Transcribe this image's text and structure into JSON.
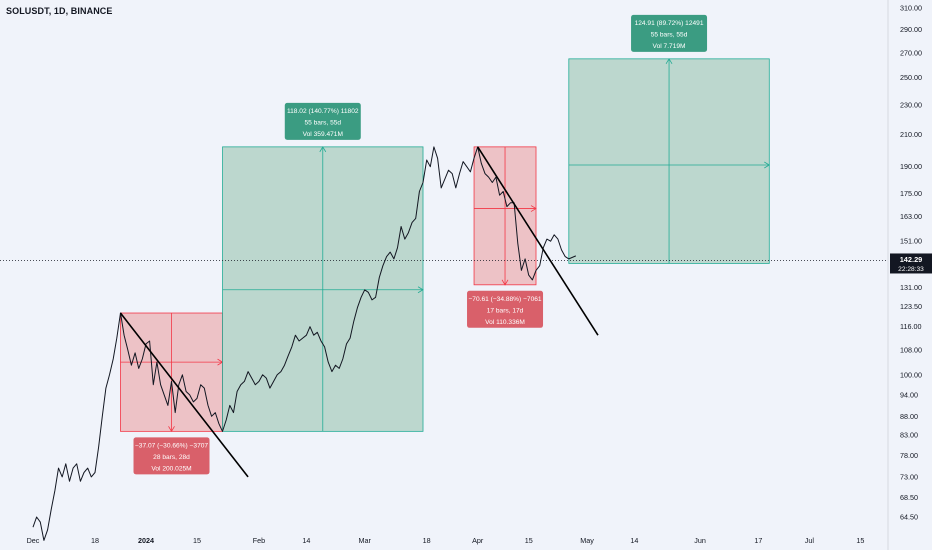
{
  "header": {
    "symbol": "SOLUSDT, 1D, BINANCE"
  },
  "colors": {
    "background": "#f0f3fa",
    "profit_fill": "#b6d4c9",
    "profit_line": "#22ab94",
    "profit_label": "#3b9c82",
    "loss_fill": "#ecbcc0",
    "loss_line": "#f23645",
    "loss_label": "#d9606a",
    "price_line": "#131722",
    "trend_line": "#000000"
  },
  "chart_data": {
    "type": "line",
    "log_scale": true,
    "y_axis_ticks": [
      310,
      290,
      270,
      250,
      230,
      210,
      190,
      175,
      163,
      151,
      131,
      123.5,
      116,
      108,
      100,
      94,
      88,
      83,
      78,
      73,
      68.5,
      64.5
    ],
    "y_axis_labels": [
      "310.00",
      "290.00",
      "270.00",
      "250.00",
      "230.00",
      "210.00",
      "190.00",
      "175.00",
      "163.00",
      "151.00",
      "131.00",
      "123.50",
      "116.00",
      "108.00",
      "100.00",
      "94.00",
      "88.00",
      "83.00",
      "78.00",
      "73.00",
      "68.50",
      "64.50"
    ],
    "x_axis_ticks": [
      {
        "label": "Dec",
        "date": "2023-12-01"
      },
      {
        "label": "18",
        "date": "2023-12-18"
      },
      {
        "label": "2024",
        "date": "2024-01-01",
        "bold": true
      },
      {
        "label": "15",
        "date": "2024-01-15"
      },
      {
        "label": "Feb",
        "date": "2024-02-01"
      },
      {
        "label": "14",
        "date": "2024-02-14"
      },
      {
        "label": "Mar",
        "date": "2024-03-01"
      },
      {
        "label": "18",
        "date": "2024-03-18"
      },
      {
        "label": "Apr",
        "date": "2024-04-01"
      },
      {
        "label": "15",
        "date": "2024-04-15"
      },
      {
        "label": "May",
        "date": "2024-05-01"
      },
      {
        "label": "14",
        "date": "2024-05-14"
      },
      {
        "label": "Jun",
        "date": "2024-06-01"
      },
      {
        "label": "17",
        "date": "2024-06-17"
      },
      {
        "label": "Jul",
        "date": "2024-07-01"
      },
      {
        "label": "15",
        "date": "2024-07-15"
      }
    ],
    "current_price": {
      "value": 142.29,
      "label": "142.29",
      "countdown": "22:28:33"
    },
    "series": [
      {
        "type": "line",
        "points": [
          [
            "2023-12-01",
            62.5
          ],
          [
            "2023-12-02",
            64.5
          ],
          [
            "2023-12-03",
            63.5
          ],
          [
            "2023-12-04",
            60
          ],
          [
            "2023-12-05",
            62
          ],
          [
            "2023-12-06",
            66
          ],
          [
            "2023-12-07",
            70
          ],
          [
            "2023-12-08",
            75
          ],
          [
            "2023-12-09",
            73
          ],
          [
            "2023-12-10",
            76
          ],
          [
            "2023-12-11",
            72
          ],
          [
            "2023-12-12",
            75
          ],
          [
            "2023-12-13",
            76
          ],
          [
            "2023-12-14",
            72
          ],
          [
            "2023-12-15",
            74
          ],
          [
            "2023-12-16",
            75
          ],
          [
            "2023-12-17",
            73
          ],
          [
            "2023-12-18",
            74
          ],
          [
            "2023-12-19",
            80
          ],
          [
            "2023-12-20",
            88
          ],
          [
            "2023-12-21",
            96
          ],
          [
            "2023-12-22",
            100
          ],
          [
            "2023-12-23",
            105
          ],
          [
            "2023-12-24",
            112
          ],
          [
            "2023-12-25",
            121
          ],
          [
            "2023-12-26",
            113
          ],
          [
            "2023-12-27",
            108
          ],
          [
            "2023-12-28",
            103
          ],
          [
            "2023-12-29",
            107
          ],
          [
            "2023-12-30",
            102
          ],
          [
            "2023-12-31",
            105
          ],
          [
            "2024-01-01",
            110
          ],
          [
            "2024-01-02",
            111
          ],
          [
            "2024-01-03",
            97
          ],
          [
            "2024-01-04",
            104
          ],
          [
            "2024-01-05",
            97
          ],
          [
            "2024-01-06",
            94
          ],
          [
            "2024-01-07",
            91
          ],
          [
            "2024-01-08",
            98
          ],
          [
            "2024-01-09",
            89
          ],
          [
            "2024-01-10",
            97
          ],
          [
            "2024-01-11",
            100
          ],
          [
            "2024-01-12",
            95
          ],
          [
            "2024-01-13",
            94
          ],
          [
            "2024-01-14",
            92
          ],
          [
            "2024-01-15",
            93
          ],
          [
            "2024-01-16",
            97
          ],
          [
            "2024-01-17",
            96
          ],
          [
            "2024-01-18",
            91
          ],
          [
            "2024-01-19",
            88
          ],
          [
            "2024-01-20",
            89
          ],
          [
            "2024-01-21",
            86
          ],
          [
            "2024-01-22",
            84
          ],
          [
            "2024-01-23",
            87
          ],
          [
            "2024-01-24",
            91
          ],
          [
            "2024-01-25",
            89
          ],
          [
            "2024-01-26",
            95
          ],
          [
            "2024-01-27",
            97
          ],
          [
            "2024-01-28",
            98
          ],
          [
            "2024-01-29",
            101
          ],
          [
            "2024-01-30",
            99
          ],
          [
            "2024-01-31",
            97
          ],
          [
            "2024-02-01",
            98
          ],
          [
            "2024-02-02",
            100
          ],
          [
            "2024-02-03",
            99
          ],
          [
            "2024-02-04",
            96
          ],
          [
            "2024-02-05",
            98
          ],
          [
            "2024-02-06",
            100
          ],
          [
            "2024-02-07",
            101
          ],
          [
            "2024-02-08",
            103
          ],
          [
            "2024-02-09",
            106
          ],
          [
            "2024-02-10",
            109
          ],
          [
            "2024-02-11",
            113
          ],
          [
            "2024-02-12",
            111
          ],
          [
            "2024-02-13",
            112
          ],
          [
            "2024-02-14",
            113
          ],
          [
            "2024-02-15",
            116
          ],
          [
            "2024-02-16",
            113
          ],
          [
            "2024-02-17",
            114
          ],
          [
            "2024-02-18",
            111
          ],
          [
            "2024-02-19",
            109
          ],
          [
            "2024-02-20",
            104
          ],
          [
            "2024-02-21",
            101
          ],
          [
            "2024-02-22",
            103
          ],
          [
            "2024-02-23",
            102
          ],
          [
            "2024-02-24",
            105
          ],
          [
            "2024-02-25",
            110
          ],
          [
            "2024-02-26",
            112
          ],
          [
            "2024-02-27",
            118
          ],
          [
            "2024-02-28",
            123
          ],
          [
            "2024-02-29",
            127
          ],
          [
            "2024-03-01",
            130
          ],
          [
            "2024-03-02",
            129
          ],
          [
            "2024-03-03",
            126
          ],
          [
            "2024-03-04",
            127
          ],
          [
            "2024-03-05",
            135
          ],
          [
            "2024-03-06",
            140
          ],
          [
            "2024-03-07",
            144
          ],
          [
            "2024-03-08",
            146
          ],
          [
            "2024-03-09",
            143
          ],
          [
            "2024-03-10",
            148
          ],
          [
            "2024-03-11",
            158
          ],
          [
            "2024-03-12",
            152
          ],
          [
            "2024-03-13",
            155
          ],
          [
            "2024-03-14",
            160
          ],
          [
            "2024-03-15",
            162
          ],
          [
            "2024-03-16",
            176
          ],
          [
            "2024-03-17",
            181
          ],
          [
            "2024-03-18",
            194
          ],
          [
            "2024-03-19",
            190
          ],
          [
            "2024-03-20",
            202
          ],
          [
            "2024-03-21",
            195
          ],
          [
            "2024-03-22",
            178
          ],
          [
            "2024-03-23",
            183
          ],
          [
            "2024-03-24",
            188
          ],
          [
            "2024-03-25",
            186
          ],
          [
            "2024-03-26",
            178
          ],
          [
            "2024-03-27",
            186
          ],
          [
            "2024-03-28",
            193
          ],
          [
            "2024-03-29",
            190
          ],
          [
            "2024-03-30",
            187
          ],
          [
            "2024-03-31",
            195
          ],
          [
            "2024-04-01",
            202
          ],
          [
            "2024-04-02",
            192
          ],
          [
            "2024-04-03",
            186
          ],
          [
            "2024-04-04",
            184
          ],
          [
            "2024-04-05",
            181
          ],
          [
            "2024-04-06",
            184
          ],
          [
            "2024-04-07",
            174
          ],
          [
            "2024-04-08",
            176
          ],
          [
            "2024-04-09",
            168
          ],
          [
            "2024-04-10",
            170
          ],
          [
            "2024-04-11",
            170
          ],
          [
            "2024-04-12",
            150
          ],
          [
            "2024-04-13",
            138
          ],
          [
            "2024-04-14",
            143
          ],
          [
            "2024-04-15",
            136
          ],
          [
            "2024-04-16",
            134
          ],
          [
            "2024-04-17",
            138
          ],
          [
            "2024-04-18",
            140
          ],
          [
            "2024-04-19",
            148
          ],
          [
            "2024-04-20",
            152
          ],
          [
            "2024-04-21",
            151
          ],
          [
            "2024-04-22",
            154
          ],
          [
            "2024-04-23",
            152
          ],
          [
            "2024-04-24",
            147
          ],
          [
            "2024-04-25",
            144
          ],
          [
            "2024-04-26",
            143
          ]
        ]
      }
    ],
    "trend_lines": [
      {
        "from": [
          "2023-12-25",
          121
        ],
        "to": [
          "2024-01-29",
          73
        ]
      },
      {
        "from": [
          "2024-04-01",
          202
        ],
        "to": [
          "2024-05-04",
          113
        ]
      }
    ],
    "position_boxes": [
      {
        "kind": "loss",
        "x_start": "2023-12-25",
        "x_end": "2024-01-22",
        "top": 121,
        "mid": 104,
        "bottom": 84,
        "label_lines": [
          "−37.07 (−30.66%) −3707",
          "28 bars, 28d",
          "Vol 200.025M"
        ]
      },
      {
        "kind": "profit",
        "x_start": "2024-01-22",
        "x_end": "2024-03-17",
        "top": 202,
        "mid": 130,
        "bottom": 84,
        "label_lines": [
          "118.02 (140.77%) 11802",
          "55 bars, 55d",
          "Vol 359.471M"
        ]
      },
      {
        "kind": "loss",
        "x_start": "2024-03-31",
        "x_end": "2024-04-17",
        "top": 202,
        "mid": 167,
        "bottom": 132,
        "label_lines": [
          "−70.61 (−34.88%) −7061",
          "17 bars, 17d",
          "Vol 110.336M"
        ]
      },
      {
        "kind": "profit",
        "x_start": "2024-04-26",
        "x_end": "2024-06-20",
        "top": 265,
        "mid": 191,
        "bottom": 141,
        "label_lines": [
          "124.91 (89.72%) 12491",
          "55 bars, 55d",
          "Vol 7.719M"
        ]
      }
    ]
  }
}
